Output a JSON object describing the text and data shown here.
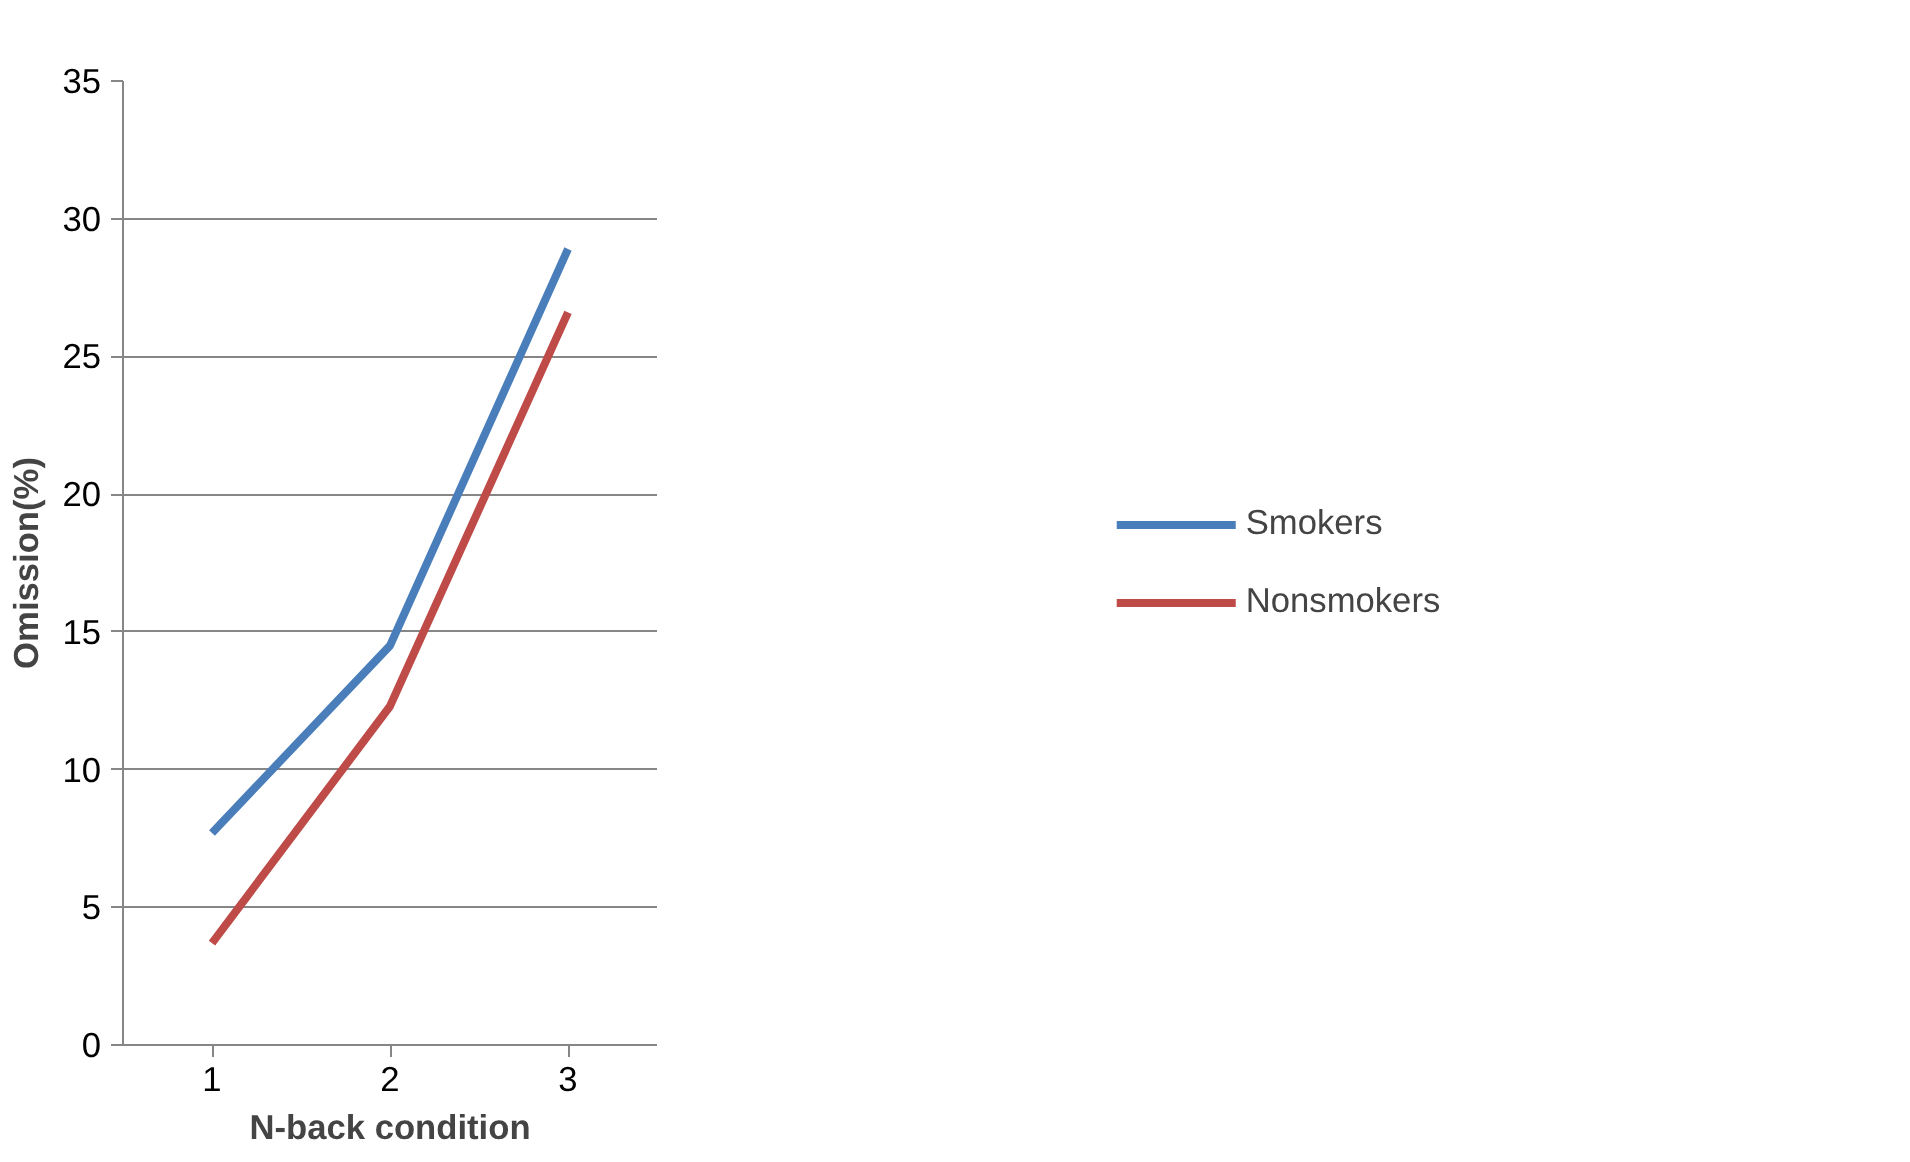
{
  "chart_data": {
    "type": "line",
    "xlabel": "N-back condition",
    "ylabel": "Omission(%)",
    "categories": [
      "1",
      "2",
      "3"
    ],
    "series": [
      {
        "name": "Smokers",
        "color": "#4a7ebb",
        "values": [
          7.7,
          14.5,
          28.9
        ]
      },
      {
        "name": "Nonsmokers",
        "color": "#be4b48",
        "values": [
          3.7,
          12.3,
          26.6
        ]
      }
    ],
    "ylim": [
      0,
      35
    ],
    "yticks": [
      0,
      5,
      10,
      15,
      20,
      25,
      30,
      35
    ],
    "grid": "y",
    "legend": "right",
    "marker": "none",
    "line_style": "solid"
  }
}
